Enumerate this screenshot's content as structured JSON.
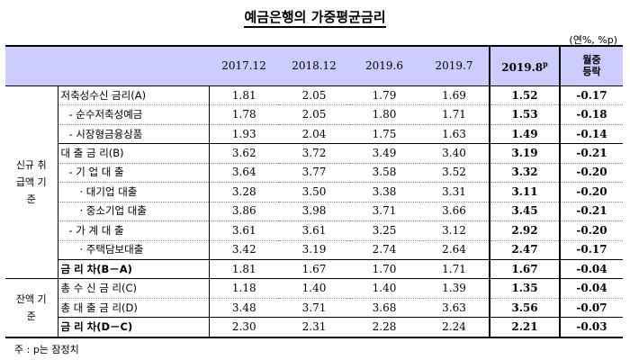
{
  "title": "예금은행의 가중평균금리",
  "unit": "(연%, %p)",
  "columns": [
    "2017.12",
    "2018.12",
    "2019.6",
    "2019.7"
  ],
  "highlight_col": {
    "label": "2019.8",
    "sup": "p"
  },
  "change_col": {
    "line1": "월중",
    "line2": "등락"
  },
  "groups": {
    "new": "신규 취급액 기준",
    "balance": "잔액 기준"
  },
  "rows": [
    {
      "label": "저축성수신 금리(A)",
      "v": [
        "1.81",
        "2.05",
        "1.79",
        "1.69"
      ],
      "hl": "1.52",
      "chg": "-0.17"
    },
    {
      "label": "- 순수저축성예금",
      "v": [
        "1.78",
        "2.05",
        "1.80",
        "1.71"
      ],
      "hl": "1.53",
      "chg": "-0.18"
    },
    {
      "label": "- 시장형금융상품",
      "v": [
        "1.93",
        "2.04",
        "1.75",
        "1.63"
      ],
      "hl": "1.49",
      "chg": "-0.14"
    },
    {
      "label": "대 출 금 리(B)",
      "v": [
        "3.62",
        "3.72",
        "3.49",
        "3.40"
      ],
      "hl": "3.19",
      "chg": "-0.21"
    },
    {
      "label": "- 기 업 대 출",
      "v": [
        "3.64",
        "3.77",
        "3.58",
        "3.52"
      ],
      "hl": "3.32",
      "chg": "-0.20"
    },
    {
      "label": "· 대기업 대출",
      "v": [
        "3.28",
        "3.50",
        "3.38",
        "3.31"
      ],
      "hl": "3.11",
      "chg": "-0.20"
    },
    {
      "label": "· 중소기업 대출",
      "v": [
        "3.86",
        "3.98",
        "3.71",
        "3.66"
      ],
      "hl": "3.45",
      "chg": "-0.21"
    },
    {
      "label": "- 가 계 대 출",
      "v": [
        "3.61",
        "3.61",
        "3.25",
        "3.12"
      ],
      "hl": "2.92",
      "chg": "-0.20"
    },
    {
      "label": "· 주택담보대출",
      "v": [
        "3.42",
        "3.19",
        "2.74",
        "2.64"
      ],
      "hl": "2.47",
      "chg": "-0.17"
    },
    {
      "label": "금 리 차(B－A)",
      "v": [
        "1.81",
        "1.67",
        "1.70",
        "1.71"
      ],
      "hl": "1.67",
      "chg": "-0.04"
    },
    {
      "label": "총 수 신 금 리(C)",
      "v": [
        "1.18",
        "1.40",
        "1.40",
        "1.39"
      ],
      "hl": "1.35",
      "chg": "-0.04"
    },
    {
      "label": "총 대 출 금 리(D)",
      "v": [
        "3.48",
        "3.71",
        "3.68",
        "3.63"
      ],
      "hl": "3.56",
      "chg": "-0.07"
    },
    {
      "label": "금 리 차(D－C)",
      "v": [
        "2.30",
        "2.31",
        "2.28",
        "2.24"
      ],
      "hl": "2.21",
      "chg": "-0.03"
    }
  ],
  "note": "주 : p는 잠정치"
}
